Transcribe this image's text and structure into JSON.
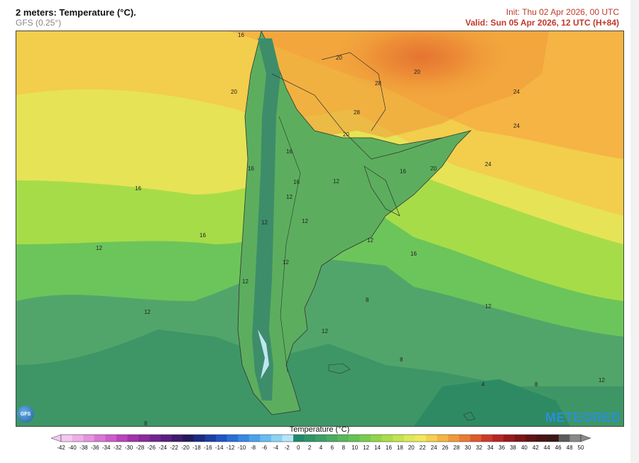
{
  "header": {
    "title": "2 meters: Temperature (°C).",
    "model": "GFS (0.25°)",
    "init": "Init: Thu 02 Apr 2026, 00 UTC",
    "valid": "Valid: Sun 05 Apr 2026, 12 UTC (H+84)"
  },
  "map": {
    "contour_labels": [
      {
        "text": "16"
      },
      {
        "text": "20"
      },
      {
        "text": "20"
      },
      {
        "text": "20"
      },
      {
        "text": "24"
      },
      {
        "text": "24"
      },
      {
        "text": "24"
      },
      {
        "text": "28"
      },
      {
        "text": "28"
      },
      {
        "text": "20"
      },
      {
        "text": "16"
      },
      {
        "text": "16"
      },
      {
        "text": "16"
      },
      {
        "text": "16"
      },
      {
        "text": "16"
      },
      {
        "text": "12"
      },
      {
        "text": "12"
      },
      {
        "text": "12"
      },
      {
        "text": "12"
      },
      {
        "text": "12"
      },
      {
        "text": "12"
      },
      {
        "text": "12"
      },
      {
        "text": "12"
      },
      {
        "text": "12"
      },
      {
        "text": "8"
      },
      {
        "text": "8"
      },
      {
        "text": "8"
      },
      {
        "text": "4"
      },
      {
        "text": "8"
      },
      {
        "text": "20"
      },
      {
        "text": "16"
      },
      {
        "text": "12"
      },
      {
        "text": "12"
      },
      {
        "text": "16"
      },
      {
        "text": "12"
      }
    ]
  },
  "logos": {
    "gfs": "GFS",
    "brand": "METEORED"
  },
  "legend": {
    "title": "Temperature (°C)",
    "ticks": [
      "-42",
      "-40",
      "-38",
      "-36",
      "-34",
      "-32",
      "-30",
      "-28",
      "-26",
      "-24",
      "-22",
      "-20",
      "-18",
      "-16",
      "-14",
      "-12",
      "-10",
      "-8",
      "-6",
      "-4",
      "-2",
      "0",
      "2",
      "4",
      "6",
      "8",
      "10",
      "12",
      "14",
      "16",
      "18",
      "20",
      "22",
      "24",
      "26",
      "28",
      "30",
      "32",
      "34",
      "36",
      "38",
      "40",
      "42",
      "44",
      "46",
      "48",
      "50"
    ],
    "colors": [
      "#f4c8f0",
      "#eeaee8",
      "#e592df",
      "#da76d6",
      "#cc5ccb",
      "#bb44bd",
      "#a233ac",
      "#8a2a9c",
      "#72248e",
      "#5a1f80",
      "#3f1a6e",
      "#231a5e",
      "#1b2b84",
      "#1c3ea6",
      "#1f55c4",
      "#2a6fd8",
      "#3789e4",
      "#49a3ec",
      "#66bdf2",
      "#8ad2f6",
      "#b6e5f8",
      "#1f8a69",
      "#2e9568",
      "#3ca066",
      "#4aab61",
      "#57b75a",
      "#64c352",
      "#79cd4c",
      "#90d647",
      "#a9de48",
      "#c3e44f",
      "#dcea58",
      "#f1e85b",
      "#f6d04e",
      "#f5b542",
      "#f09a39",
      "#e97c33",
      "#de5a2d",
      "#cf3a28",
      "#b82623",
      "#9a1a1c",
      "#7d1417",
      "#611214",
      "#4a1414",
      "#3a1818",
      "#5c5a5a",
      "#8a8888"
    ]
  }
}
